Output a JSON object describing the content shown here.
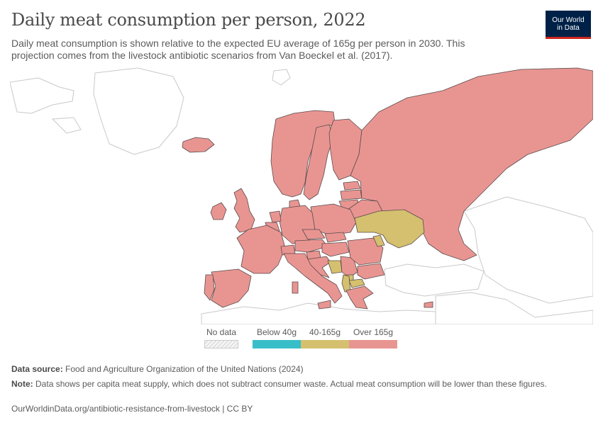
{
  "header": {
    "title": "Daily meat consumption per person, 2022",
    "subtitle": "Daily meat consumption is shown relative to the expected EU average of 165g per person in 2030. This projection comes from the livestock antibiotic scenarios from Van Boeckel et al. (2017)."
  },
  "logo": {
    "line1": "Our World",
    "line2": "in Data"
  },
  "colors": {
    "no_data": "#e9e9e9",
    "below_40": "#38bec9",
    "between_40_165": "#d4c06e",
    "over_165": "#e89592",
    "border": "#5a4a4a",
    "outline": "#c9c9c9",
    "logo_bg": "#002147",
    "logo_accent": "#ce261e"
  },
  "legend": {
    "no_data": "No data",
    "bins": [
      {
        "label": "Below 40g",
        "color": "#38bec9"
      },
      {
        "label": "40-165g",
        "color": "#d4c06e"
      },
      {
        "label": "Over 165g",
        "color": "#e89592"
      }
    ]
  },
  "map": {
    "over_165": [
      "Iceland",
      "Ireland",
      "United Kingdom",
      "Norway",
      "Sweden",
      "Finland",
      "Estonia",
      "Latvia",
      "Lithuania",
      "Belarus",
      "Russia",
      "Poland",
      "Germany",
      "Netherlands",
      "Belgium",
      "Denmark",
      "France",
      "Spain",
      "Portugal",
      "Italy",
      "Switzerland",
      "Austria",
      "Czechia",
      "Slovakia",
      "Hungary",
      "Slovenia",
      "Croatia",
      "Romania",
      "Bulgaria",
      "Serbia",
      "Greece",
      "Cyprus"
    ],
    "between_40_165": [
      "Ukraine",
      "Moldova",
      "Bosnia and Herzegovina",
      "North Macedonia",
      "Albania",
      "Kosovo"
    ],
    "below_40": [],
    "no_data": [
      "Turkey",
      "Caucasus",
      "Central Asia",
      "North Africa",
      "Middle East",
      "Greenland",
      "Svalbard"
    ]
  },
  "footer": {
    "source_label": "Data source:",
    "source_text": "Food and Agriculture Organization of the United Nations (2024)",
    "note_label": "Note:",
    "note_text": "Data shows per capita meat supply, which does not subtract consumer waste. Actual meat consumption will be lower than these figures.",
    "url": "OurWorldinData.org/antibiotic-resistance-from-livestock | CC BY"
  }
}
